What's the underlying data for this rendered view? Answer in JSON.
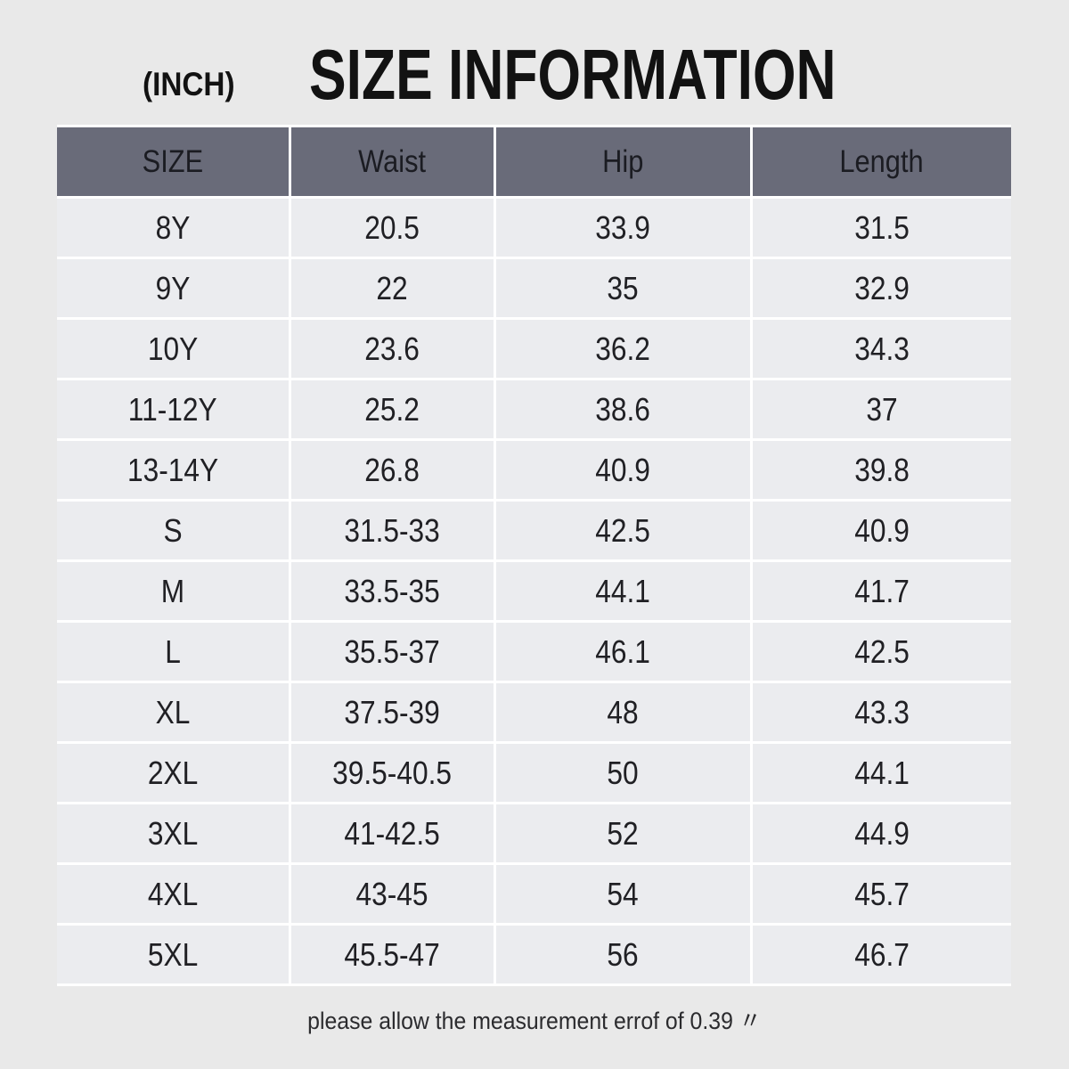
{
  "page": {
    "unit_label": "(INCH)",
    "title": "SIZE INFORMATION",
    "footer_note": "please allow the measurement errof of 0.39 〃"
  },
  "table": {
    "columns": [
      "SIZE",
      "Waist",
      "Hip",
      "Length"
    ],
    "rows": [
      [
        "8Y",
        "20.5",
        "33.9",
        "31.5"
      ],
      [
        "9Y",
        "22",
        "35",
        "32.9"
      ],
      [
        "10Y",
        "23.6",
        "36.2",
        "34.3"
      ],
      [
        "11-12Y",
        "25.2",
        "38.6",
        "37"
      ],
      [
        "13-14Y",
        "26.8",
        "40.9",
        "39.8"
      ],
      [
        "S",
        "31.5-33",
        "42.5",
        "40.9"
      ],
      [
        "M",
        "33.5-35",
        "44.1",
        "41.7"
      ],
      [
        "L",
        "35.5-37",
        "46.1",
        "42.5"
      ],
      [
        "XL",
        "37.5-39",
        "48",
        "43.3"
      ],
      [
        "2XL",
        "39.5-40.5",
        "50",
        "44.1"
      ],
      [
        "3XL",
        "41-42.5",
        "52",
        "44.9"
      ],
      [
        "4XL",
        "43-45",
        "54",
        "45.7"
      ],
      [
        "5XL",
        "45.5-47",
        "56",
        "46.7"
      ]
    ]
  },
  "colors": {
    "page_bg": "#e9e9e9",
    "header_bg": "#696b79",
    "header_text": "#1b1c22",
    "cell_bg": "#ebecef",
    "cell_text": "#202024",
    "divider": "#ffffff"
  }
}
